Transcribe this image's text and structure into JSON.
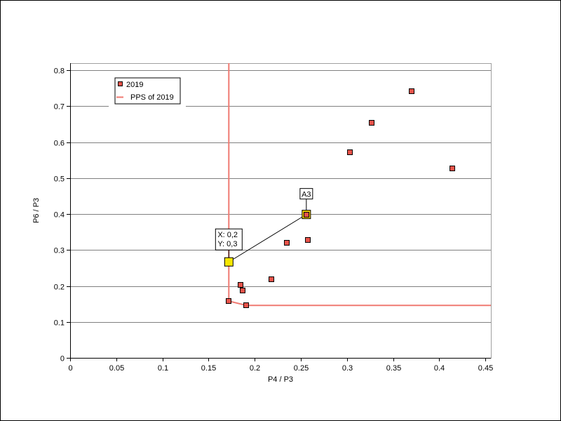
{
  "chart_data": {
    "type": "scatter",
    "xlabel": "P4 / P3",
    "ylabel": "P6 / P3",
    "xlim": [
      0,
      0.456
    ],
    "ylim": [
      0,
      0.82
    ],
    "x_ticks": [
      0,
      0.05,
      0.1,
      0.15,
      0.2,
      0.25,
      0.3,
      0.35,
      0.4,
      0.45
    ],
    "x_tick_labels": [
      "0",
      "0.05",
      "0.1",
      "0.15",
      "0.2",
      "0.25",
      "0.3",
      "0.35",
      "0.4",
      "0.45"
    ],
    "y_ticks": [
      0,
      0.1,
      0.2,
      0.3,
      0.4,
      0.5,
      0.6,
      0.7,
      0.8
    ],
    "y_tick_labels": [
      "0",
      "0.1",
      "0.2",
      "0.3",
      "0.4",
      "0.5",
      "0.6",
      "0.7",
      "0.8"
    ],
    "grid": "horizontal",
    "legend_position": "top-left",
    "series": [
      {
        "name": "2019",
        "kind": "scatter",
        "marker": "square",
        "color": "#e8534a",
        "points": [
          {
            "x": 0.172,
            "y": 0.158
          },
          {
            "x": 0.185,
            "y": 0.203
          },
          {
            "x": 0.187,
            "y": 0.188
          },
          {
            "x": 0.191,
            "y": 0.146
          },
          {
            "x": 0.218,
            "y": 0.219
          },
          {
            "x": 0.235,
            "y": 0.321
          },
          {
            "x": 0.256,
            "y": 0.399
          },
          {
            "x": 0.258,
            "y": 0.328
          },
          {
            "x": 0.303,
            "y": 0.572
          },
          {
            "x": 0.327,
            "y": 0.654
          },
          {
            "x": 0.37,
            "y": 0.741
          },
          {
            "x": 0.414,
            "y": 0.527
          }
        ]
      },
      {
        "name": "PPS of 2019",
        "kind": "line",
        "color": "#f07a72",
        "points": [
          {
            "x": 0.172,
            "y": 0.82
          },
          {
            "x": 0.172,
            "y": 0.158
          },
          {
            "x": 0.191,
            "y": 0.146
          },
          {
            "x": 0.456,
            "y": 0.146
          }
        ]
      }
    ],
    "annotations": [
      {
        "label": "A3",
        "x": 0.256,
        "y": 0.399,
        "color": "#f5d000"
      },
      {
        "label_lines": [
          "X: 0,2",
          "Y: 0,3"
        ],
        "x": 0.172,
        "y": 0.267,
        "color": "#f5e600"
      }
    ]
  }
}
